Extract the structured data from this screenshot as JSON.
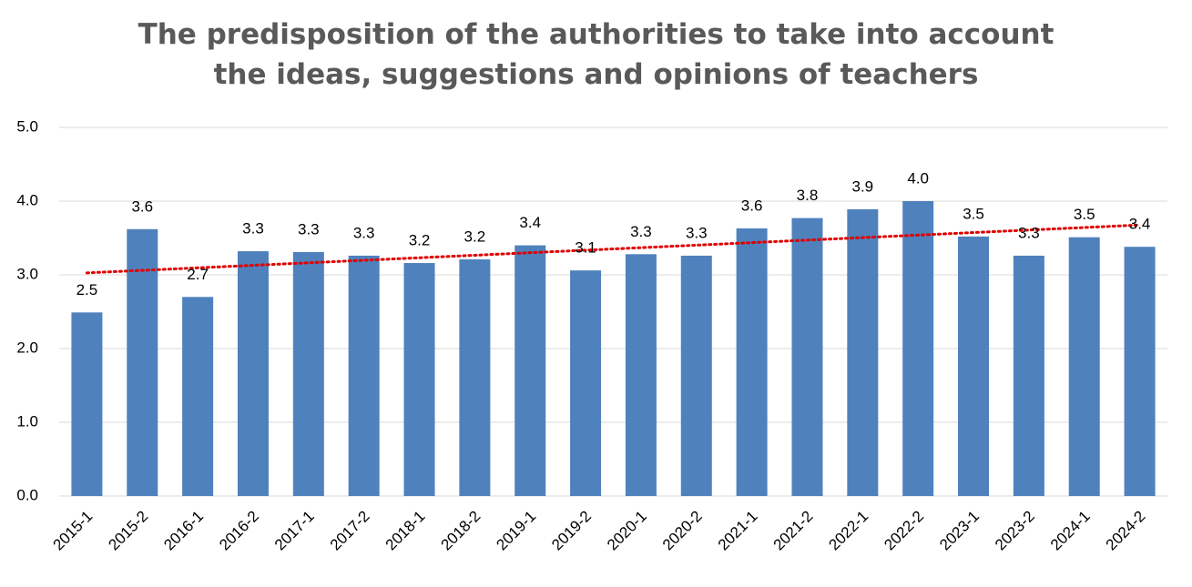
{
  "chart_data": {
    "type": "bar",
    "title": "The predisposition of the authorities to take into account the ideas, suggestions and opinions of teachers",
    "categories": [
      "2015-1",
      "2015-2",
      "2016-1",
      "2016-2",
      "2017-1",
      "2017-2",
      "2018-1",
      "2018-2",
      "2019-1",
      "2019-2",
      "2020-1",
      "2020-2",
      "2021-1",
      "2021-2",
      "2022-1",
      "2022-2",
      "2023-1",
      "2023-2",
      "2024-1",
      "2024-2"
    ],
    "values": [
      2.49,
      3.62,
      2.7,
      3.32,
      3.31,
      3.26,
      3.16,
      3.21,
      3.4,
      3.06,
      3.28,
      3.26,
      3.63,
      3.77,
      3.89,
      4.0,
      3.52,
      3.26,
      3.51,
      3.38
    ],
    "value_labels": [
      "2.5",
      "3.6",
      "2.7",
      "3.3",
      "3.3",
      "3.3",
      "3.2",
      "3.2",
      "3.4",
      "3.1",
      "3.3",
      "3.3",
      "3.6",
      "3.8",
      "3.9",
      "4.0",
      "3.5",
      "3.3",
      "3.5",
      "3.4"
    ],
    "color": "#4f81bd",
    "ylim": [
      0,
      5
    ],
    "yticks": [
      {
        "value": 0,
        "label": "0.0"
      },
      {
        "value": 1,
        "label": "1.0"
      },
      {
        "value": 2,
        "label": "2.0"
      },
      {
        "value": 3,
        "label": "3.0"
      },
      {
        "value": 4,
        "label": "4.0"
      },
      {
        "value": 5,
        "label": "5.0"
      }
    ],
    "grid": true,
    "trendline": {
      "type": "linear",
      "color": "#e00000"
    }
  }
}
